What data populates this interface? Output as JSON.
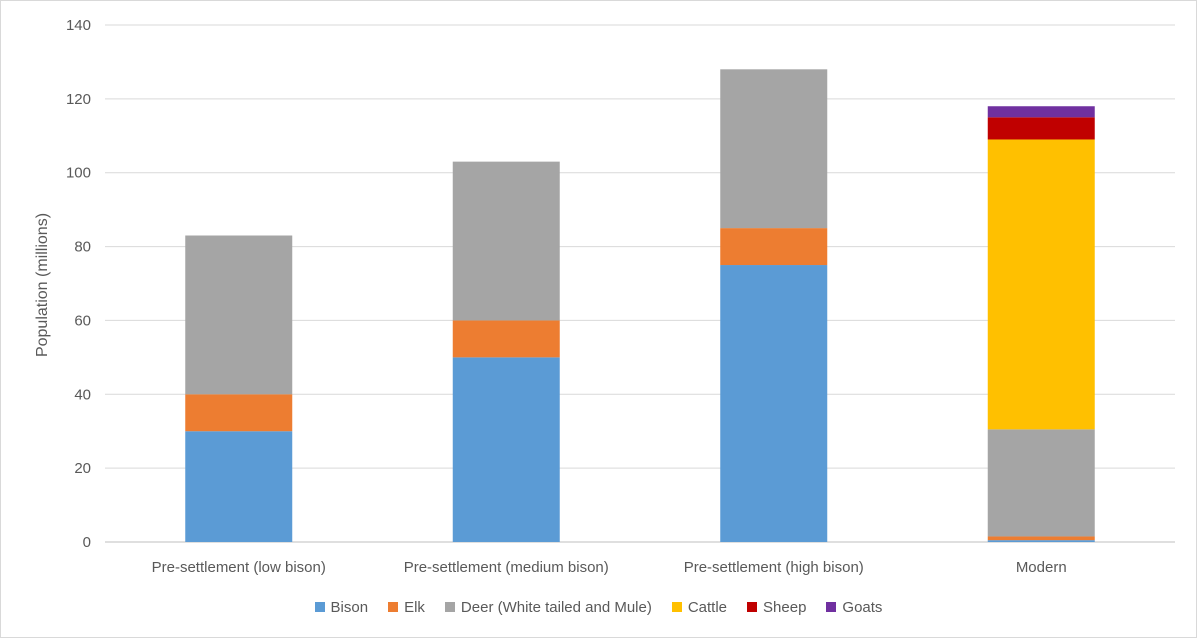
{
  "chart_data": {
    "type": "bar",
    "stacked": true,
    "categories": [
      "Pre-settlement (low bison)",
      "Pre-settlement (medium bison)",
      "Pre-settlement (high bison)",
      "Modern"
    ],
    "series": [
      {
        "name": "Bison",
        "color": "#5b9bd5",
        "values": [
          30,
          50,
          75,
          0.5
        ]
      },
      {
        "name": "Elk",
        "color": "#ed7d31",
        "values": [
          10,
          10,
          10,
          1
        ]
      },
      {
        "name": "Deer (White tailed and Mule)",
        "color": "#a5a5a5",
        "values": [
          43,
          43,
          43,
          29
        ]
      },
      {
        "name": "Cattle",
        "color": "#ffc000",
        "values": [
          0,
          0,
          0,
          78.5
        ]
      },
      {
        "name": "Sheep",
        "color": "#c00000",
        "values": [
          0,
          0,
          0,
          6
        ]
      },
      {
        "name": "Goats",
        "color": "#7030a0",
        "values": [
          0,
          0,
          0,
          3
        ]
      }
    ],
    "title": "",
    "xlabel": "",
    "ylabel": "Population (millions)",
    "ylim": [
      0,
      140
    ],
    "yticks": [
      0,
      20,
      40,
      60,
      80,
      100,
      120,
      140
    ],
    "grid": true,
    "legend_position": "bottom"
  }
}
